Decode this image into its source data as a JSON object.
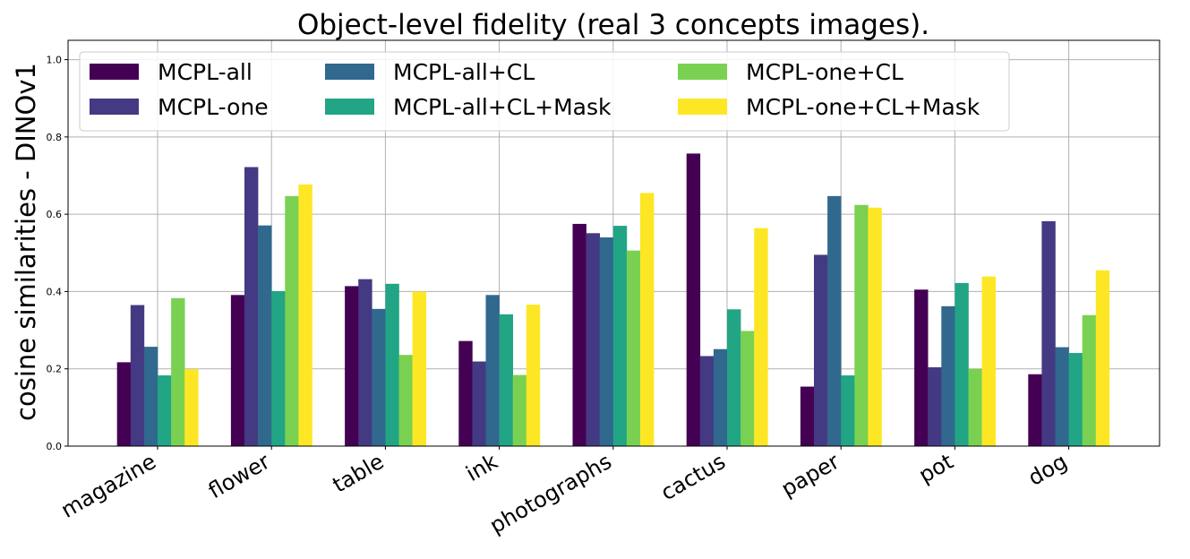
{
  "chart_data": {
    "type": "bar",
    "title": "Object-level fidelity (real 3 concepts images).",
    "xlabel": "",
    "ylabel": "cosine similarities - DINOv1",
    "ylim": [
      0.0,
      1.05
    ],
    "yticks": [
      0.0,
      0.2,
      0.4,
      0.6,
      0.8,
      1.0
    ],
    "ytick_labels": [
      "0.0",
      "0.2",
      "0.4",
      "0.6",
      "0.8",
      "1.0"
    ],
    "grid": true,
    "legend_position": "top-left",
    "categories": [
      "magazine",
      "flower",
      "table",
      "ink",
      "photographs",
      "cactus",
      "paper",
      "pot",
      "dog"
    ],
    "series": [
      {
        "name": "MCPL-all",
        "color": "#440154",
        "values": [
          0.217,
          0.391,
          0.414,
          0.272,
          0.575,
          0.757,
          0.154,
          0.405,
          0.186
        ]
      },
      {
        "name": "MCPL-one",
        "color": "#443a83",
        "values": [
          0.365,
          0.722,
          0.432,
          0.219,
          0.551,
          0.233,
          0.495,
          0.204,
          0.582
        ]
      },
      {
        "name": "MCPL-all+CL",
        "color": "#31688e",
        "values": [
          0.257,
          0.571,
          0.355,
          0.391,
          0.54,
          0.251,
          0.647,
          0.362,
          0.256
        ]
      },
      {
        "name": "MCPL-all+CL+Mask",
        "color": "#21a585",
        "values": [
          0.183,
          0.401,
          0.42,
          0.341,
          0.57,
          0.354,
          0.183,
          0.422,
          0.241
        ]
      },
      {
        "name": "MCPL-one+CL",
        "color": "#7ad151",
        "values": [
          0.383,
          0.647,
          0.236,
          0.184,
          0.506,
          0.298,
          0.624,
          0.2,
          0.339
        ]
      },
      {
        "name": "MCPL-one+CL+Mask",
        "color": "#fde725",
        "values": [
          0.199,
          0.677,
          0.4,
          0.366,
          0.655,
          0.564,
          0.617,
          0.439,
          0.455
        ]
      }
    ]
  }
}
